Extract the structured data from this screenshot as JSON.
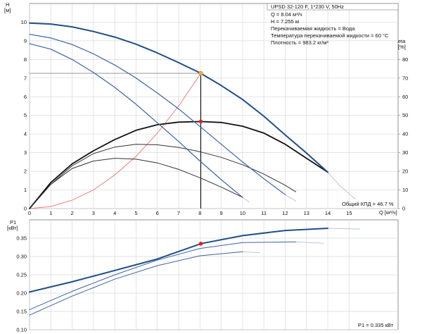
{
  "chart_data": [
    {
      "type": "line",
      "panel": "pump-curves",
      "title": "UPSD 32-120 F, 1*230 V, 50Hz",
      "info_lines": [
        "Q = 8.04 м³/ч",
        "H = 7.255 м",
        "Перекачиваемая жидкость = Вода",
        "Температура перекачиваемой жидкости = 60 °C",
        "Плотность = 983.2 кг/м³"
      ],
      "ylabel_left": "H",
      "ylabel_left_unit": "[м]",
      "ylabel_right": "eta",
      "ylabel_right_unit": "[%]",
      "xlabel": "Q [м³/ч]",
      "xlim": [
        0,
        17.3
      ],
      "ylim": [
        0,
        11
      ],
      "eta_lim": [
        0,
        110
      ],
      "x_ticks": [
        "0",
        "1",
        "2",
        "3",
        "4",
        "5",
        "6",
        "7",
        "8",
        "9",
        "10",
        "11",
        "12",
        "13",
        "14",
        "15"
      ],
      "y_ticks": [
        "0",
        "1",
        "2",
        "3",
        "4",
        "5",
        "6",
        "7",
        "8",
        "9",
        "10"
      ],
      "eta_ticks": [
        "0",
        "10",
        "20",
        "30",
        "40",
        "50",
        "60",
        "70",
        "80"
      ],
      "efficiency_label": "Общий КПД = 46.7 %",
      "grid": true,
      "head_curves": [
        {
          "speed": 3,
          "color": "#1f4e89",
          "width": 2.0,
          "x": [
            0,
            1,
            2,
            3,
            4,
            5,
            6,
            7,
            8,
            8.04,
            9,
            10,
            11,
            12,
            13,
            14
          ],
          "y": [
            9.95,
            9.9,
            9.75,
            9.5,
            9.2,
            8.82,
            8.35,
            7.83,
            7.28,
            7.255,
            6.6,
            5.85,
            4.95,
            3.95,
            2.98,
            1.95
          ]
        },
        {
          "speed": 2,
          "color": "#3a64a0",
          "width": 1.2,
          "x": [
            0,
            1,
            2,
            3,
            4,
            5,
            6,
            7,
            8,
            9,
            10,
            11,
            12
          ],
          "y": [
            9.35,
            9.15,
            8.8,
            8.3,
            7.7,
            7.0,
            6.2,
            5.35,
            4.4,
            3.45,
            2.5,
            1.6,
            0.75
          ]
        },
        {
          "speed": 1,
          "color": "#3a64a0",
          "width": 1.2,
          "x": [
            0,
            1,
            2,
            3,
            4,
            5,
            6,
            7,
            8,
            9,
            10
          ],
          "y": [
            8.85,
            8.55,
            8.0,
            7.3,
            6.5,
            5.6,
            4.6,
            3.6,
            2.55,
            1.55,
            0.6
          ]
        }
      ],
      "head_curve_extensions": [
        {
          "x": [
            14,
            14.5,
            15.3
          ],
          "y": [
            1.95,
            1.3,
            0.5
          ]
        },
        {
          "x": [
            12,
            12.5
          ],
          "y": [
            0.75,
            0.4
          ]
        },
        {
          "x": [
            10,
            10.3
          ],
          "y": [
            0.6,
            0.35
          ]
        }
      ],
      "efficiency_curves": [
        {
          "speed": 3,
          "color": "#111111",
          "width": 1.8,
          "x": [
            0,
            1,
            2,
            3,
            4,
            5,
            6,
            7,
            8,
            8.04,
            9,
            10,
            11,
            12,
            13,
            14
          ],
          "eta": [
            0,
            14,
            24,
            31,
            37,
            42,
            45,
            46.4,
            46.7,
            46.7,
            46.2,
            44.2,
            40.5,
            34.5,
            27,
            19.5
          ]
        },
        {
          "speed": 2,
          "color": "#333333",
          "width": 1.0,
          "x": [
            0,
            1,
            2,
            3,
            4,
            5,
            6,
            7,
            8,
            9,
            10,
            11,
            12,
            12.5
          ],
          "eta": [
            0,
            13,
            23,
            29.5,
            33,
            34.5,
            34.2,
            32.8,
            30.5,
            27.5,
            23.5,
            18.5,
            12.5,
            9
          ]
        },
        {
          "speed": 1,
          "color": "#333333",
          "width": 1.0,
          "x": [
            0,
            1,
            2,
            3,
            4,
            5,
            6,
            7,
            8,
            9,
            10
          ],
          "eta": [
            0,
            13,
            21.5,
            25.5,
            27,
            26.5,
            24.5,
            21,
            16.5,
            11.5,
            6
          ]
        }
      ],
      "system_curve": {
        "color": "#f07070",
        "x": [
          0,
          1,
          2,
          3,
          4,
          5,
          6,
          7,
          8.04
        ],
        "y": [
          0,
          0.11,
          0.45,
          1.0,
          1.8,
          2.8,
          4.05,
          5.5,
          7.255
        ]
      },
      "operating_point": {
        "q": 8.04,
        "h": 7.255,
        "eta": 46.7,
        "h_marker_color": "#f0b030",
        "eta_marker_color": "#e02020"
      }
    },
    {
      "type": "line",
      "panel": "power",
      "ylabel": "P1",
      "ylabel_unit": "[кВт]",
      "xlim": [
        0,
        17.3
      ],
      "ylim": [
        0.1,
        0.4
      ],
      "y_ticks": [
        "0.10",
        "0.15",
        "0.20",
        "0.25",
        "0.30",
        "0.35"
      ],
      "power_label": "P1 = 0.335 кВт",
      "grid": true,
      "series": [
        {
          "speed": 3,
          "color": "#1f4e89",
          "width": 2.0,
          "x": [
            0,
            2,
            4,
            6,
            8,
            8.04,
            10,
            12,
            14
          ],
          "y": [
            0.203,
            0.231,
            0.262,
            0.293,
            0.334,
            0.335,
            0.357,
            0.371,
            0.377
          ]
        },
        {
          "speed": 2,
          "color": "#3a64a0",
          "width": 1.0,
          "x": [
            0,
            2,
            4,
            6,
            8,
            10,
            12.5
          ],
          "y": [
            0.155,
            0.205,
            0.25,
            0.29,
            0.322,
            0.338,
            0.34
          ]
        },
        {
          "speed": 1,
          "color": "#3a64a0",
          "width": 1.0,
          "x": [
            0,
            2,
            4,
            6,
            8,
            10
          ],
          "y": [
            0.14,
            0.192,
            0.238,
            0.275,
            0.302,
            0.313
          ]
        }
      ],
      "series_extensions": [
        {
          "x": [
            14,
            15.5
          ],
          "y": [
            0.377,
            0.375
          ]
        },
        {
          "x": [
            12.5,
            13.8
          ],
          "y": [
            0.34,
            0.336
          ]
        },
        {
          "x": [
            10,
            10.8
          ],
          "y": [
            0.313,
            0.31
          ]
        }
      ],
      "operating_point": {
        "q": 8.04,
        "p1": 0.335,
        "color": "#e02020"
      }
    }
  ]
}
